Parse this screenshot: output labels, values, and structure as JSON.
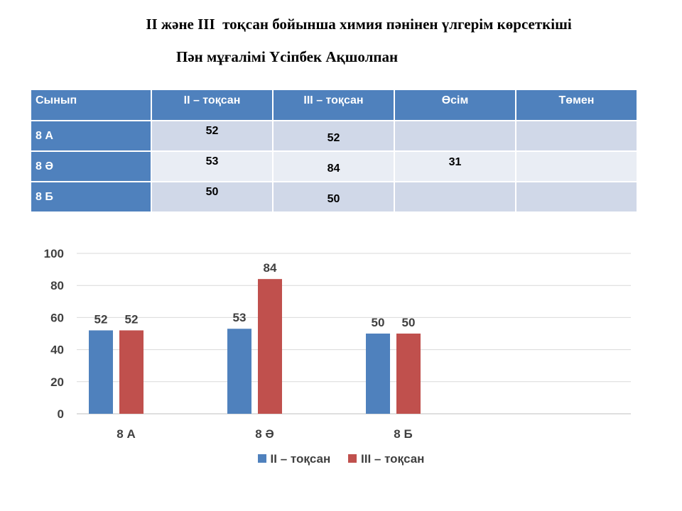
{
  "title": "II және III  тоқсан бойынша химия пәнінен үлгерім көрсеткіші",
  "subtitle": "Пән мұғалімі Үсіпбек Ақшолпан",
  "table": {
    "headers": [
      "Сынып",
      "II – тоқсан",
      "III – тоқсан",
      "Өсім",
      "Төмен"
    ],
    "rows": [
      {
        "class": "8 А",
        "q2": "52",
        "q3": "52",
        "up": "",
        "down": ""
      },
      {
        "class": "8 Ә",
        "q2": "53",
        "q3": "84",
        "up": "31",
        "down": ""
      },
      {
        "class": "8 Б",
        "q2": "50",
        "q3": "50",
        "up": "",
        "down": ""
      }
    ]
  },
  "colors": {
    "series1": "#4f81bd",
    "series2": "#c0504d",
    "header": "#4f81bd"
  },
  "chart_data": {
    "type": "bar",
    "title": "",
    "xlabel": "",
    "ylabel": "",
    "categories": [
      "8 А",
      "8 Ә",
      "8 Б"
    ],
    "series": [
      {
        "name": "II – тоқсан",
        "values": [
          52,
          53,
          50
        ]
      },
      {
        "name": "III – тоқсан",
        "values": [
          52,
          84,
          50
        ]
      }
    ],
    "ylim": [
      0,
      100
    ],
    "yticks": [
      0,
      20,
      40,
      60,
      80,
      100
    ],
    "grid": true,
    "data_labels": true,
    "legend": "bottom"
  }
}
